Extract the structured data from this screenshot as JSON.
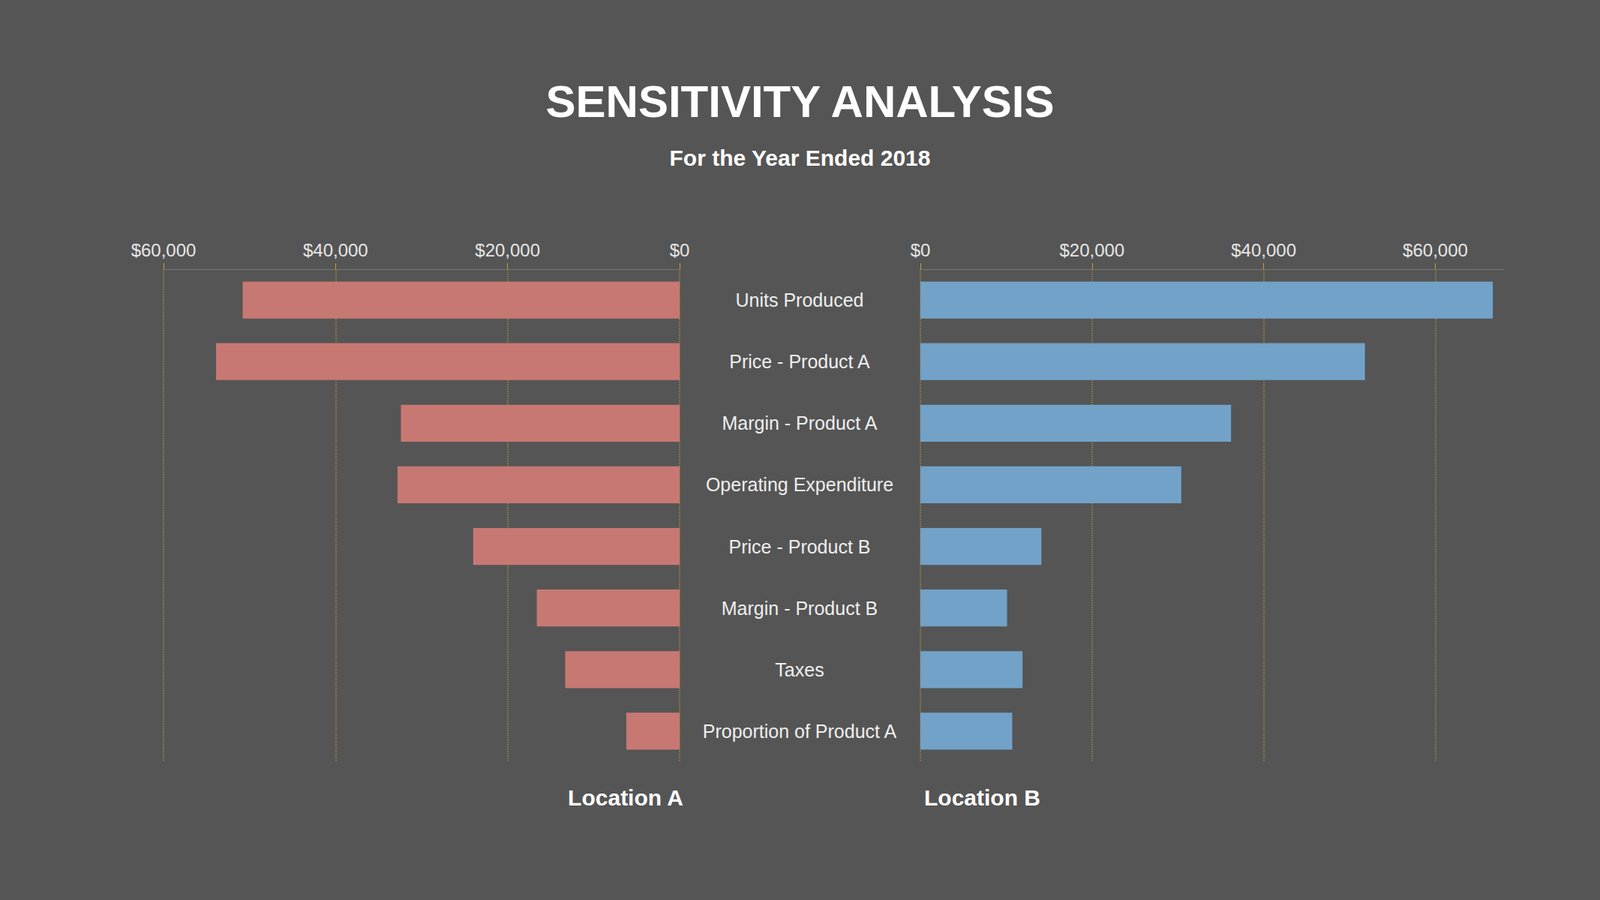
{
  "title": "SENSITIVITY ANALYSIS",
  "subtitle": "For the Year Ended 2018",
  "chart_data": [
    {
      "type": "bar",
      "orientation": "horizontal",
      "title": "Location A",
      "categories": [
        "Units Produced",
        "Price - Product A",
        "Margin - Product A",
        "Operating Expenditure",
        "Price - Product B",
        "Margin - Product B",
        "Taxes",
        "Proportion of Product A"
      ],
      "values": [
        50800,
        53900,
        32400,
        32800,
        24000,
        16600,
        13300,
        6200
      ],
      "color": "#c87872",
      "xlim": [
        0,
        60000
      ],
      "xticks": [
        {
          "value": 0,
          "label": "$0"
        },
        {
          "value": 20000,
          "label": "$20,000"
        },
        {
          "value": 40000,
          "label": "$40,000"
        },
        {
          "value": 60000,
          "label": "$60,000"
        }
      ],
      "grid": true
    },
    {
      "type": "bar",
      "orientation": "horizontal",
      "title": "Location B",
      "categories": [
        "Units Produced",
        "Price - Product A",
        "Margin - Product A",
        "Operating Expenditure",
        "Price - Product B",
        "Margin - Product B",
        "Taxes",
        "Proportion of Product A"
      ],
      "values": [
        66700,
        51800,
        36200,
        30400,
        14100,
        10100,
        11900,
        10700
      ],
      "color": "#72a2c8",
      "xlim": [
        0,
        68000
      ],
      "xticks": [
        {
          "value": 0,
          "label": "$0"
        },
        {
          "value": 20000,
          "label": "$20,000"
        },
        {
          "value": 40000,
          "label": "$40,000"
        },
        {
          "value": 60000,
          "label": "$60,000"
        }
      ],
      "grid": true
    }
  ]
}
